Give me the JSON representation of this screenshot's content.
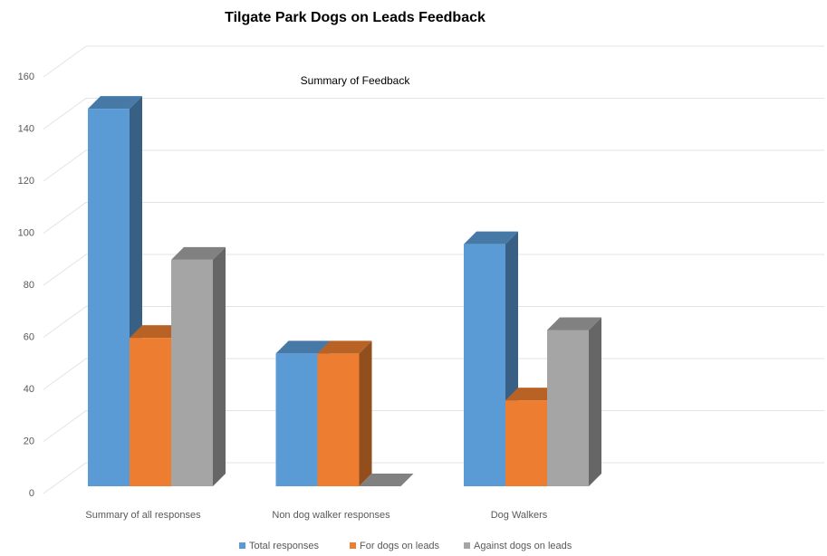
{
  "chart_data": {
    "type": "bar3d",
    "title": "Tilgate Park Dogs on Leads Feedback",
    "subtitle": "Summary of Feedback",
    "categories": [
      "Summary of all responses",
      "Non dog walker responses",
      "Dog Walkers"
    ],
    "series": [
      {
        "name": "Total responses",
        "color": "#5b9bd5",
        "values": [
          145,
          51,
          93
        ]
      },
      {
        "name": "For dogs on leads",
        "color": "#ed7d31",
        "values": [
          57,
          51,
          33
        ]
      },
      {
        "name": "Against dogs on leads",
        "color": "#a5a5a5",
        "values": [
          87,
          0,
          60
        ]
      }
    ],
    "ylim": [
      0,
      160
    ],
    "yticks": [
      0,
      20,
      40,
      60,
      80,
      100,
      120,
      140,
      160
    ],
    "grid": true,
    "legend": "bottom"
  }
}
